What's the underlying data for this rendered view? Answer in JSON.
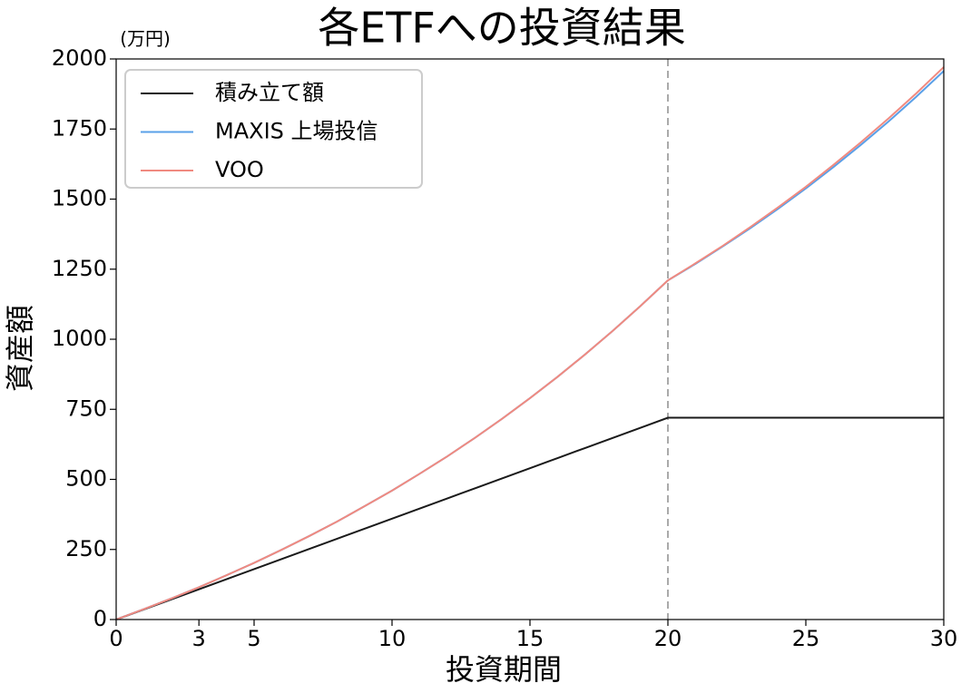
{
  "chart_data": {
    "type": "line",
    "title": "各ETFへの投資結果",
    "unit_label": "(万円)",
    "xlabel": "投資期間",
    "ylabel": "資産額",
    "x": [
      0,
      1,
      2,
      3,
      4,
      5,
      6,
      7,
      8,
      9,
      10,
      11,
      12,
      13,
      14,
      15,
      16,
      17,
      18,
      19,
      20,
      21,
      22,
      23,
      24,
      25,
      26,
      27,
      28,
      29,
      30
    ],
    "series": [
      {
        "name": "積み立て額",
        "color": "#1a1a1a",
        "values": [
          0,
          36,
          72,
          108,
          144,
          180,
          216,
          252,
          288,
          324,
          360,
          396,
          432,
          468,
          504,
          540,
          576,
          612,
          648,
          684,
          720,
          720,
          720,
          720,
          720,
          720,
          720,
          720,
          720,
          720,
          720
        ]
      },
      {
        "name": "MAXIS 上場投信",
        "color": "#5aa0e8",
        "values": [
          0,
          37,
          75,
          115,
          158,
          202,
          249,
          298,
          349,
          404,
          460,
          520,
          582,
          648,
          717,
          790,
          866,
          946,
          1030,
          1118,
          1210,
          1269,
          1332,
          1397,
          1466,
          1538,
          1614,
          1694,
          1777,
          1865,
          1957
        ]
      },
      {
        "name": "VOO",
        "color": "#f08a80",
        "values": [
          0,
          37,
          75,
          115,
          158,
          202,
          249,
          298,
          349,
          404,
          460,
          520,
          582,
          648,
          717,
          790,
          866,
          946,
          1030,
          1118,
          1210,
          1271,
          1334,
          1401,
          1471,
          1544,
          1622,
          1703,
          1788,
          1877,
          1971
        ]
      }
    ],
    "xlim": [
      0,
      30
    ],
    "xticks": [
      0,
      3,
      5,
      10,
      15,
      20,
      25,
      30
    ],
    "ylim": [
      0,
      2000
    ],
    "yticks": [
      0,
      250,
      500,
      750,
      1000,
      1250,
      1500,
      1750,
      2000
    ],
    "vline": 20,
    "legend": "upper-left"
  }
}
